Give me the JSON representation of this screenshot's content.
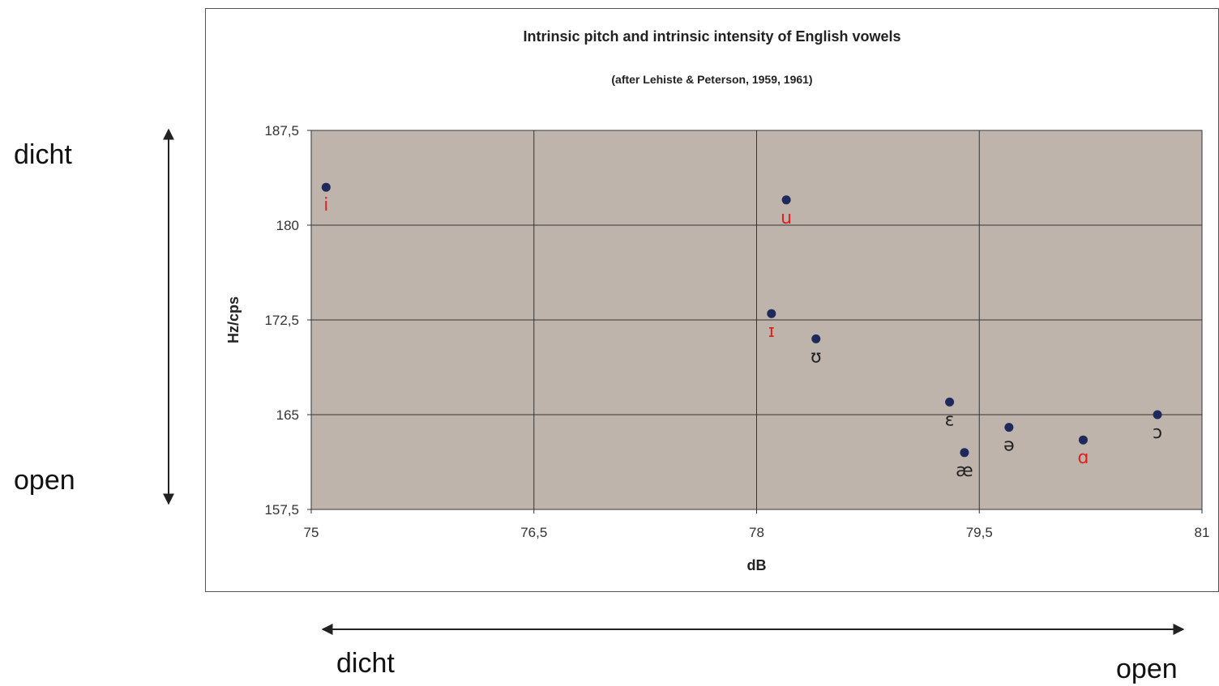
{
  "chart_data": {
    "type": "scatter",
    "title": "Intrinsic pitch and intrinsic intensity of English vowels",
    "subtitle": "(after Lehiste & Peterson, 1959, 1961)",
    "xlabel": "dB",
    "ylabel": "Hz/cps",
    "xlim": [
      75,
      81
    ],
    "ylim": [
      157.5,
      187.5
    ],
    "x_ticks": [
      "75",
      "76,5",
      "78",
      "79,5",
      "81"
    ],
    "y_ticks": [
      "157,5",
      "165",
      "172,5",
      "180",
      "187,5"
    ],
    "grid": true,
    "plot_background": "#bfb4ab",
    "point_color": "#1f2a5c",
    "points": [
      {
        "label": "i",
        "x": 75.1,
        "y": 183.0,
        "label_color": "#e02020"
      },
      {
        "label": "u",
        "x": 78.2,
        "y": 182.0,
        "label_color": "#e02020"
      },
      {
        "label": "ɪ",
        "x": 78.1,
        "y": 173.0,
        "label_color": "#e02020"
      },
      {
        "label": "ʊ",
        "x": 78.4,
        "y": 171.0,
        "label_color": "#222222"
      },
      {
        "label": "ɛ",
        "x": 79.3,
        "y": 166.0,
        "label_color": "#222222"
      },
      {
        "label": "æ",
        "x": 79.4,
        "y": 162.0,
        "label_color": "#222222"
      },
      {
        "label": "ə",
        "x": 79.7,
        "y": 164.0,
        "label_color": "#222222"
      },
      {
        "label": "ɑ",
        "x": 80.2,
        "y": 163.0,
        "label_color": "#e02020"
      },
      {
        "label": "ɔ",
        "x": 80.7,
        "y": 165.0,
        "label_color": "#222222"
      }
    ]
  },
  "annotations": {
    "y_top": "dicht",
    "y_bottom": "open",
    "x_left": "dicht",
    "x_right": "open"
  }
}
